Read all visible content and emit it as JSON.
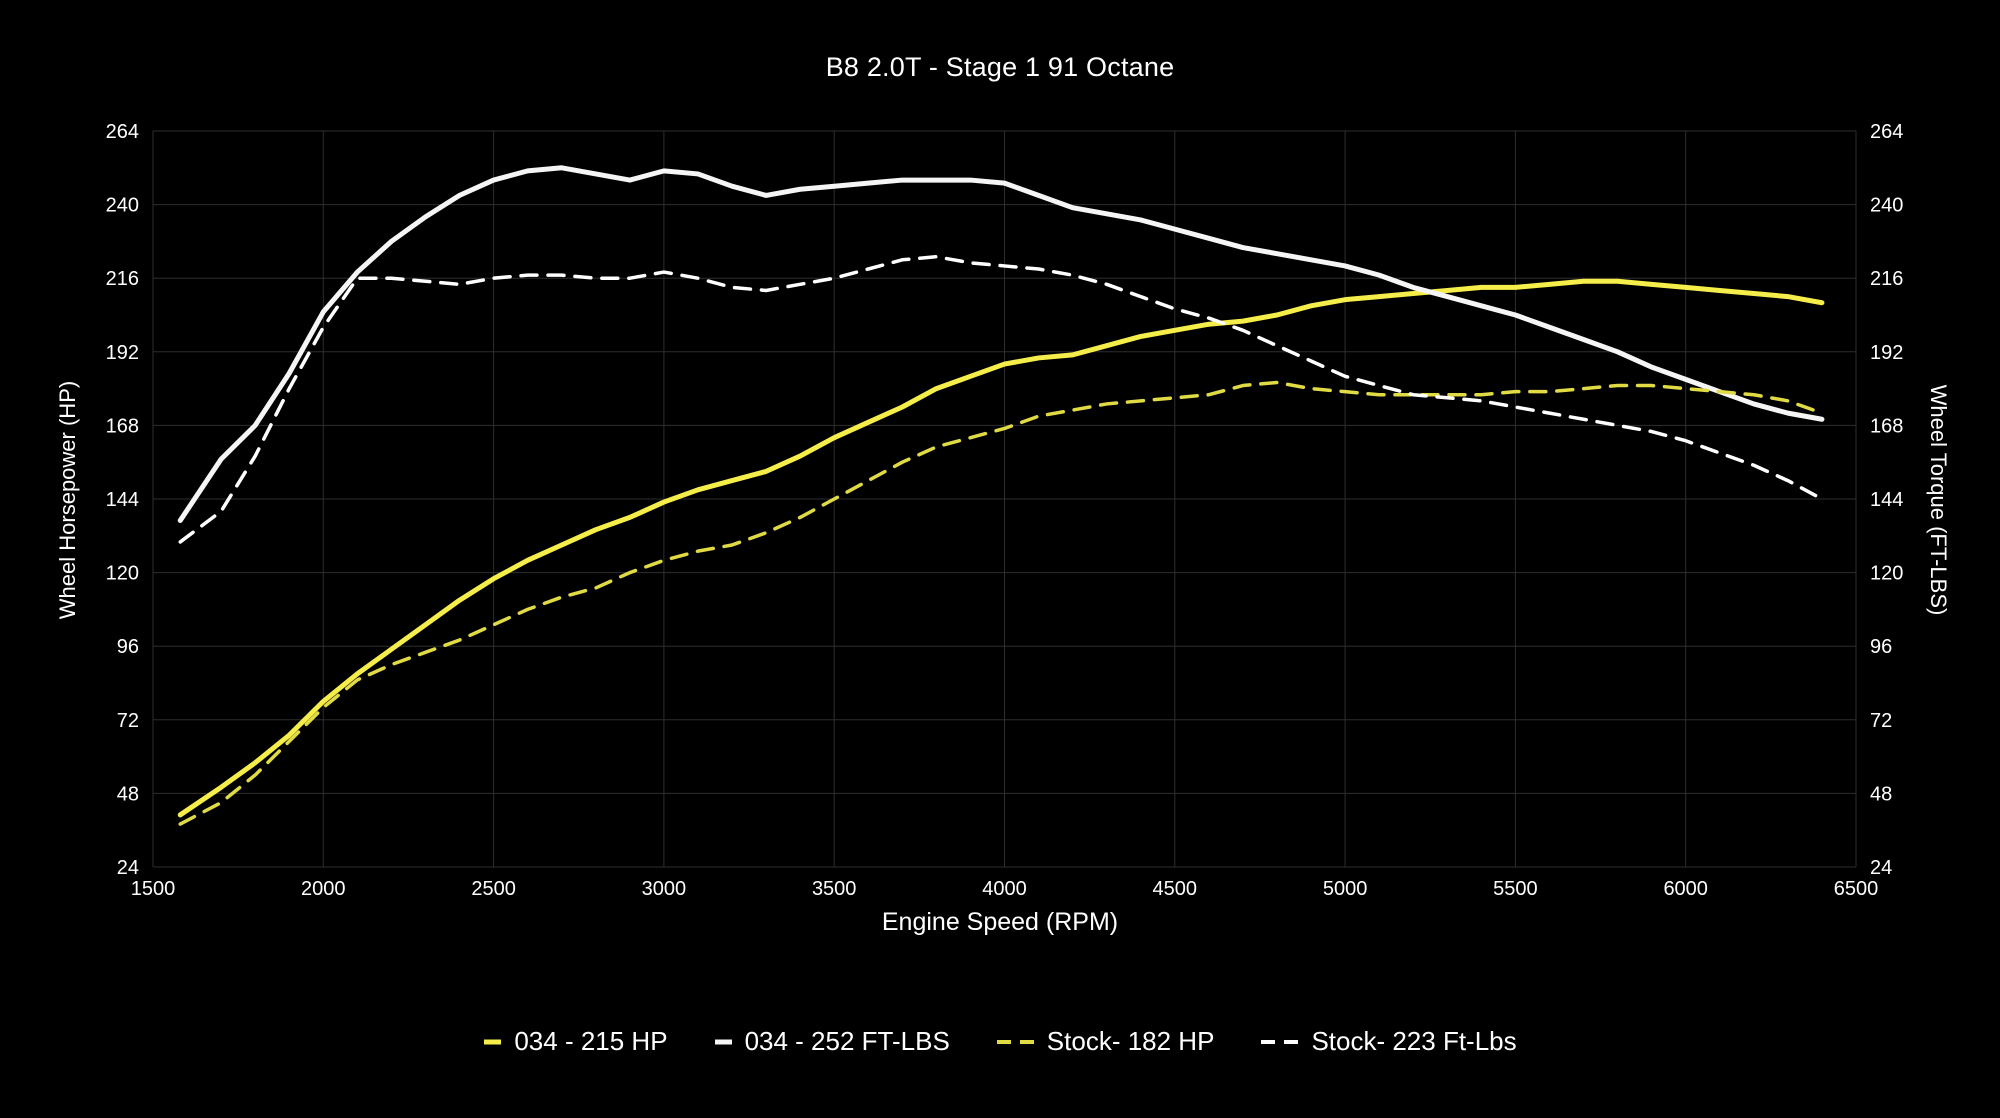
{
  "chart_data": {
    "type": "line",
    "title": "B8 2.0T - Stage 1 91 Octane",
    "xlabel": "Engine Speed (RPM)",
    "ylabel_left": "Wheel Horsepower (HP)",
    "ylabel_right": "Wheel Torque (FT-LBS)",
    "xlim": [
      1500,
      6500
    ],
    "ylim": [
      24,
      264
    ],
    "x_ticks": [
      1500,
      2000,
      2500,
      3000,
      3500,
      4000,
      4500,
      5000,
      5500,
      6000,
      6500
    ],
    "y_ticks": [
      24,
      48,
      72,
      96,
      120,
      144,
      168,
      192,
      216,
      240,
      264
    ],
    "grid": true,
    "legend_position": "bottom-center",
    "background_color": "#000000",
    "grid_color": "#2e2e2e",
    "text_color": "#ffffff",
    "x": [
      1580,
      1700,
      1800,
      1900,
      2000,
      2100,
      2200,
      2300,
      2400,
      2500,
      2600,
      2700,
      2800,
      2900,
      3000,
      3100,
      3200,
      3300,
      3400,
      3500,
      3600,
      3700,
      3800,
      3900,
      4000,
      4100,
      4200,
      4300,
      4400,
      4500,
      4600,
      4700,
      4800,
      4900,
      5000,
      5100,
      5200,
      5300,
      5400,
      5500,
      5600,
      5700,
      5800,
      5900,
      6000,
      6100,
      6200,
      6300,
      6400
    ],
    "series": [
      {
        "name": "034 - 215 HP",
        "color": "#f5ee4a",
        "dash": "solid",
        "axis": "hp",
        "values": [
          41,
          50,
          58,
          67,
          78,
          87,
          95,
          103,
          111,
          118,
          124,
          129,
          134,
          138,
          143,
          147,
          150,
          153,
          158,
          164,
          169,
          174,
          180,
          184,
          188,
          190,
          191,
          194,
          197,
          199,
          201,
          202,
          204,
          207,
          209,
          210,
          211,
          212,
          213,
          213,
          214,
          215,
          215,
          214,
          213,
          212,
          211,
          210,
          208
        ]
      },
      {
        "name": "034 - 252 FT-LBS",
        "color": "#f5f5f5",
        "dash": "solid",
        "axis": "torque",
        "values": [
          137,
          157,
          168,
          185,
          205,
          218,
          228,
          236,
          243,
          248,
          251,
          252,
          250,
          248,
          251,
          250,
          246,
          243,
          245,
          246,
          247,
          248,
          248,
          248,
          247,
          243,
          239,
          237,
          235,
          232,
          229,
          226,
          224,
          222,
          220,
          217,
          213,
          210,
          207,
          204,
          200,
          196,
          192,
          187,
          183,
          179,
          175,
          172,
          170
        ]
      },
      {
        "name": "Stock- 182 HP",
        "color": "#e0da45",
        "dash": "dashed",
        "axis": "hp",
        "values": [
          38,
          45,
          54,
          65,
          76,
          85,
          90,
          94,
          98,
          103,
          108,
          112,
          115,
          120,
          124,
          127,
          129,
          133,
          138,
          144,
          150,
          156,
          161,
          164,
          167,
          171,
          173,
          175,
          176,
          177,
          178,
          181,
          182,
          180,
          179,
          178,
          178,
          178,
          178,
          179,
          179,
          180,
          181,
          181,
          180,
          179,
          178,
          176,
          172
        ]
      },
      {
        "name": "Stock- 223 Ft-Lbs",
        "color": "#ffffff",
        "dash": "dashed",
        "axis": "torque",
        "values": [
          130,
          140,
          158,
          180,
          200,
          216,
          216,
          215,
          214,
          216,
          217,
          217,
          216,
          216,
          218,
          216,
          213,
          212,
          214,
          216,
          219,
          222,
          223,
          221,
          220,
          219,
          217,
          214,
          210,
          206,
          203,
          199,
          194,
          189,
          184,
          181,
          178,
          177,
          176,
          174,
          172,
          170,
          168,
          166,
          163,
          159,
          155,
          150,
          144
        ]
      }
    ]
  }
}
